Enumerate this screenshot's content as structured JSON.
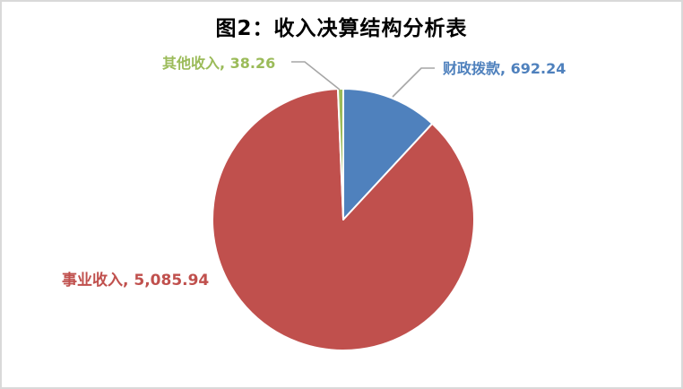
{
  "chart": {
    "background_color": "#ffffff",
    "border_color": "#d9d9d9",
    "leader_line_color": "#a6a6a6",
    "title_color": "#000000"
  },
  "chart_data": {
    "type": "pie",
    "title": "图2：收入决算结构分析表",
    "categories": [
      "财政拨款",
      "事业收入",
      "其他收入"
    ],
    "values": [
      692.24,
      5085.94,
      38.26
    ],
    "labels": [
      "财政拨款, 692.24",
      "事业收入, 5,085.94",
      "其他收入, 38.26"
    ],
    "colors": [
      "#4f81bd",
      "#c0504d",
      "#9bbb59"
    ],
    "slice_keys": [
      "fiscal-appropriation",
      "operating-income",
      "other-income"
    ],
    "total": 5816.44,
    "start_angle_deg": 0,
    "direction": "clockwise",
    "legend": "none",
    "data_labels": "outside, category name and value, colored to match slice",
    "slice_border_color": "#ffffff"
  }
}
